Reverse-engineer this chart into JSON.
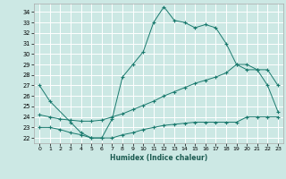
{
  "xlabel": "Humidex (Indice chaleur)",
  "bg_color": "#cce8e4",
  "grid_color": "#ffffff",
  "line_color": "#1a7a6e",
  "xlim": [
    -0.5,
    23.5
  ],
  "ylim": [
    21.5,
    34.8
  ],
  "xticks": [
    0,
    1,
    2,
    3,
    4,
    5,
    6,
    7,
    8,
    9,
    10,
    11,
    12,
    13,
    14,
    15,
    16,
    17,
    18,
    19,
    20,
    21,
    22,
    23
  ],
  "yticks": [
    22,
    23,
    24,
    25,
    26,
    27,
    28,
    29,
    30,
    31,
    32,
    33,
    34
  ],
  "series1_x": [
    0,
    1,
    3,
    4,
    5,
    6,
    7,
    8,
    9,
    10,
    11,
    12,
    13,
    14,
    15,
    16,
    17,
    18,
    19,
    20,
    21,
    22,
    23
  ],
  "series1_y": [
    27.0,
    25.5,
    23.5,
    22.5,
    22.0,
    22.0,
    23.8,
    27.8,
    29.0,
    30.2,
    33.0,
    34.5,
    33.2,
    33.0,
    32.5,
    32.8,
    32.5,
    31.0,
    29.0,
    29.0,
    28.5,
    27.0,
    24.5
  ],
  "series2_x": [
    0,
    1,
    2,
    3,
    4,
    5,
    6,
    7,
    8,
    9,
    10,
    11,
    12,
    13,
    14,
    15,
    16,
    17,
    18,
    19,
    20,
    21,
    22,
    23
  ],
  "series2_y": [
    24.2,
    24.0,
    23.8,
    23.7,
    23.6,
    23.6,
    23.7,
    24.0,
    24.3,
    24.7,
    25.1,
    25.5,
    26.0,
    26.4,
    26.8,
    27.2,
    27.5,
    27.8,
    28.2,
    29.0,
    28.5,
    28.5,
    28.5,
    27.0
  ],
  "series3_x": [
    0,
    1,
    2,
    3,
    4,
    5,
    6,
    7,
    8,
    9,
    10,
    11,
    12,
    13,
    14,
    15,
    16,
    17,
    18,
    19,
    20,
    21,
    22,
    23
  ],
  "series3_y": [
    23.0,
    23.0,
    22.8,
    22.5,
    22.3,
    22.0,
    22.0,
    22.0,
    22.3,
    22.5,
    22.8,
    23.0,
    23.2,
    23.3,
    23.4,
    23.5,
    23.5,
    23.5,
    23.5,
    23.5,
    24.0,
    24.0,
    24.0,
    24.0
  ]
}
